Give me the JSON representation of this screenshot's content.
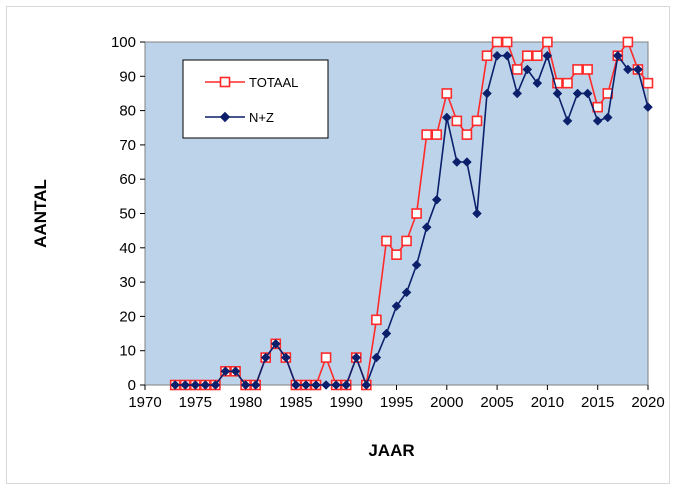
{
  "chart_data": {
    "type": "line",
    "xlabel": "JAAR",
    "ylabel": "AANTAL",
    "xlim": [
      1970,
      2020
    ],
    "ylim": [
      0,
      100
    ],
    "xticks": [
      1970,
      1975,
      1980,
      1985,
      1990,
      1995,
      2000,
      2005,
      2010,
      2015,
      2020
    ],
    "yticks": [
      0,
      10,
      20,
      30,
      40,
      50,
      60,
      70,
      80,
      90,
      100
    ],
    "grid": false,
    "plot_background": "#bcd3ea",
    "legend_position": "top-left",
    "x": [
      1973,
      1974,
      1975,
      1976,
      1977,
      1978,
      1979,
      1980,
      1981,
      1982,
      1983,
      1984,
      1985,
      1986,
      1987,
      1988,
      1989,
      1990,
      1991,
      1992,
      1993,
      1994,
      1995,
      1996,
      1997,
      1998,
      1999,
      2000,
      2001,
      2002,
      2003,
      2004,
      2005,
      2006,
      2007,
      2008,
      2009,
      2010,
      2011,
      2012,
      2013,
      2014,
      2015,
      2016,
      2017,
      2018,
      2019,
      2020
    ],
    "series": [
      {
        "name": "TOTAAL",
        "color": "#ff2a2a",
        "marker": "open-square",
        "values": [
          0,
          0,
          0,
          0,
          0,
          4,
          4,
          0,
          0,
          8,
          12,
          8,
          0,
          0,
          0,
          8,
          0,
          0,
          8,
          0,
          19,
          42,
          38,
          42,
          50,
          73,
          73,
          85,
          77,
          73,
          77,
          96,
          100,
          100,
          92,
          96,
          96,
          100,
          88,
          88,
          92,
          92,
          81,
          85,
          96,
          100,
          92,
          88
        ]
      },
      {
        "name": "N+Z",
        "color": "#0b1f6b",
        "marker": "filled-diamond",
        "values": [
          0,
          0,
          0,
          0,
          0,
          4,
          4,
          0,
          0,
          8,
          12,
          8,
          0,
          0,
          0,
          0,
          0,
          0,
          8,
          0,
          8,
          15,
          23,
          27,
          35,
          46,
          54,
          78,
          65,
          65,
          50,
          85,
          96,
          96,
          85,
          92,
          88,
          96,
          85,
          77,
          85,
          85,
          77,
          78,
          96,
          92,
          92,
          81
        ]
      }
    ]
  }
}
